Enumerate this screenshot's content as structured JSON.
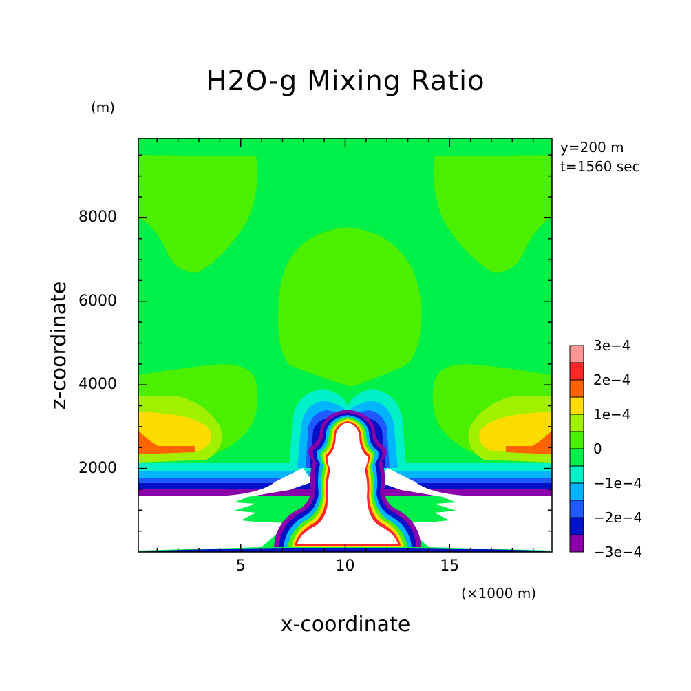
{
  "chart_data": {
    "type": "heatmap",
    "title": "H2O-g Mixing Ratio",
    "xlabel": "x-coordinate",
    "ylabel": "z-coordinate",
    "x_unit": "(×1000 m)",
    "y_unit": "(m)",
    "xlim": [
      0.1,
      19.9
    ],
    "ylim": [
      0,
      9900
    ],
    "xticks": [
      5,
      10,
      15
    ],
    "xtick_labels": [
      "5",
      "10",
      "15"
    ],
    "yticks": [
      2000,
      4000,
      6000,
      8000
    ],
    "ytick_labels": [
      "2000",
      "4000",
      "6000",
      "8000"
    ],
    "annotations": [
      "y=200 m",
      "t=1560 sec"
    ],
    "colorbar": {
      "levels": [
        -0.0003,
        -0.00025,
        -0.0002,
        -0.00015,
        -0.0001,
        -5e-05,
        0,
        5e-05,
        0.0001,
        0.00015,
        0.0002,
        0.00025,
        0.0003
      ],
      "labels": [
        "3e−4",
        "2e−4",
        "1e−4",
        "0",
        "−1e−4",
        "−2e−4",
        "−3e−4"
      ],
      "colors": [
        "#8a00a8",
        "#0012c8",
        "#1e5aff",
        "#00b4ff",
        "#00f0c8",
        "#00f04a",
        "#4af000",
        "#a0f000",
        "#ffdc00",
        "#ff6400",
        "#ff2828",
        "#ff9696"
      ]
    }
  }
}
